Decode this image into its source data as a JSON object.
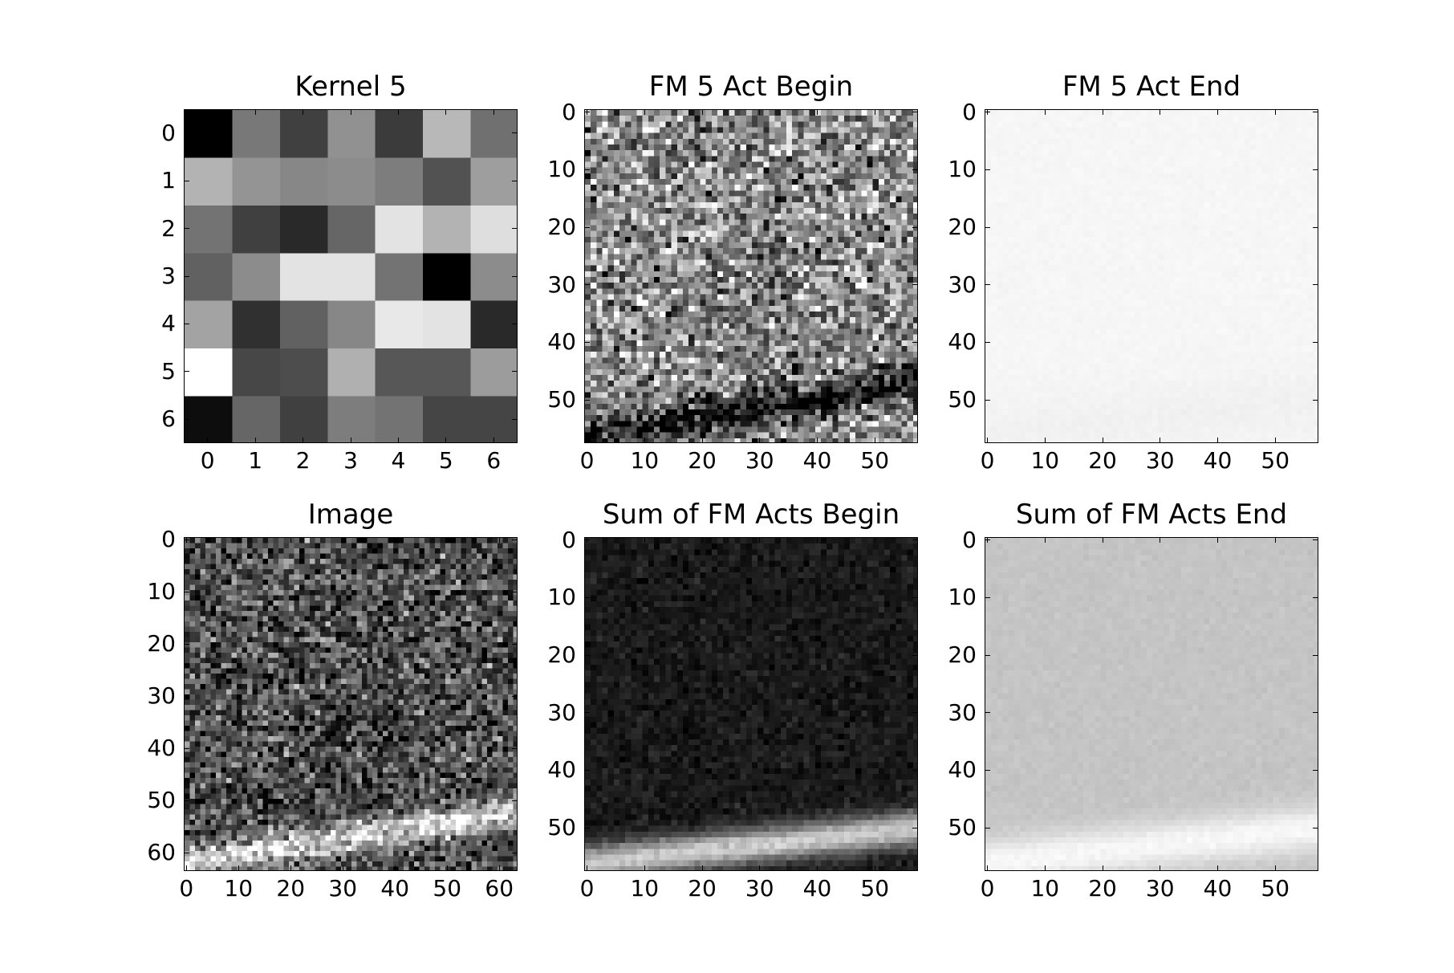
{
  "chart_data": [
    {
      "type": "heatmap",
      "title": "Kernel 5",
      "rows": 7,
      "cols": 7,
      "colormap": "gray",
      "values": [
        [
          0.0,
          0.47,
          0.25,
          0.57,
          0.23,
          0.72,
          0.44
        ],
        [
          0.7,
          0.58,
          0.53,
          0.55,
          0.49,
          0.32,
          0.62
        ],
        [
          0.45,
          0.25,
          0.16,
          0.4,
          0.89,
          0.7,
          0.87
        ],
        [
          0.38,
          0.55,
          0.89,
          0.89,
          0.45,
          0.0,
          0.55
        ],
        [
          0.64,
          0.19,
          0.38,
          0.53,
          0.91,
          0.89,
          0.16
        ],
        [
          1.0,
          0.28,
          0.3,
          0.69,
          0.34,
          0.34,
          0.61
        ],
        [
          0.05,
          0.4,
          0.25,
          0.49,
          0.45,
          0.27,
          0.27
        ]
      ],
      "xticks": [
        "0",
        "1",
        "2",
        "3",
        "4",
        "5",
        "6"
      ],
      "yticks": [
        "0",
        "1",
        "2",
        "3",
        "4",
        "5",
        "6"
      ],
      "xlim": [
        -0.5,
        6.5
      ],
      "ylim": [
        6.5,
        -0.5
      ]
    },
    {
      "type": "heatmap",
      "title": "FM 5 Act Begin",
      "rows": 58,
      "cols": 58,
      "colormap": "gray",
      "texture": {
        "base": 0.55,
        "noise": 0.22,
        "band": "dark",
        "band_strength": 0.5,
        "band_start_row": 56,
        "band_end_row": 47,
        "band_width": 3
      },
      "xticks": [
        "0",
        "10",
        "20",
        "30",
        "40",
        "50"
      ],
      "yticks": [
        "0",
        "10",
        "20",
        "30",
        "40",
        "50"
      ],
      "xlim": [
        -0.5,
        57.5
      ],
      "ylim": [
        57.5,
        -0.5
      ]
    },
    {
      "type": "heatmap",
      "title": "FM 5 Act End",
      "rows": 58,
      "cols": 58,
      "colormap": "gray",
      "texture": {
        "base": 0.965,
        "noise": 0.005,
        "band": "dark",
        "band_strength": 0.02,
        "band_start_row": 56,
        "band_end_row": 50,
        "band_width": 6
      },
      "xticks": [
        "0",
        "10",
        "20",
        "30",
        "40",
        "50"
      ],
      "yticks": [
        "0",
        "10",
        "20",
        "30",
        "40",
        "50"
      ],
      "xlim": [
        -0.5,
        57.5
      ],
      "ylim": [
        57.5,
        -0.5
      ]
    },
    {
      "type": "heatmap",
      "title": "Image",
      "rows": 64,
      "cols": 64,
      "colormap": "gray",
      "texture": {
        "base": 0.3,
        "noise": 0.18,
        "band": "bright",
        "band_strength": 0.55,
        "band_start_row": 62,
        "band_end_row": 52,
        "band_width": 3
      },
      "xticks": [
        "0",
        "10",
        "20",
        "30",
        "40",
        "50",
        "60"
      ],
      "yticks": [
        "0",
        "10",
        "20",
        "30",
        "40",
        "50",
        "60"
      ],
      "xlim": [
        -0.5,
        63.5
      ],
      "ylim": [
        63.5,
        -0.5
      ]
    },
    {
      "type": "heatmap",
      "title": "Sum of FM Acts Begin",
      "rows": 58,
      "cols": 58,
      "colormap": "gray",
      "texture": {
        "base": 0.1,
        "noise": 0.04,
        "band": "bright",
        "band_strength": 0.7,
        "band_start_row": 56,
        "band_end_row": 50,
        "band_width": 3
      },
      "xticks": [
        "0",
        "10",
        "20",
        "30",
        "40",
        "50"
      ],
      "yticks": [
        "0",
        "10",
        "20",
        "30",
        "40",
        "50"
      ],
      "xlim": [
        -0.5,
        57.5
      ],
      "ylim": [
        57.5,
        -0.5
      ]
    },
    {
      "type": "heatmap",
      "title": "Sum of FM Acts End",
      "rows": 58,
      "cols": 58,
      "colormap": "gray",
      "texture": {
        "base": 0.77,
        "noise": 0.01,
        "band": "bright",
        "band_strength": 0.2,
        "band_start_row": 56,
        "band_end_row": 50,
        "band_width": 4
      },
      "xticks": [
        "0",
        "10",
        "20",
        "30",
        "40",
        "50"
      ],
      "yticks": [
        "0",
        "10",
        "20",
        "30",
        "40",
        "50"
      ],
      "xlim": [
        -0.5,
        57.5
      ],
      "ylim": [
        57.5,
        -0.5
      ]
    }
  ]
}
